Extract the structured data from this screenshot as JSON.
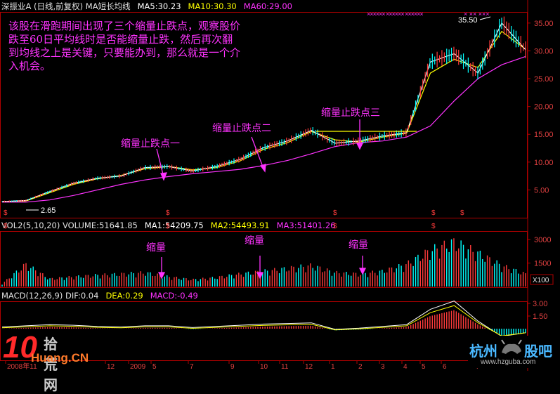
{
  "header_main": {
    "title": "深振业A (日线,前复权) MA短长均线",
    "ma5": "MA5:30.23",
    "ma10": "MA10:30.30",
    "ma60": "MA60:29.00"
  },
  "header_vol": {
    "vol": "VOL2(5,10,20) VOLUME:51641.85",
    "ma1": "MA1:54209.75",
    "ma2": "MA2:54493.91",
    "ma3": "MA3:51401.26"
  },
  "header_macd": {
    "macd": "MACD(12,26,9) DIF:0.04",
    "dea": "DEA:0.29",
    "macdv": "MACD:-0.49"
  },
  "annotation": "该股在滑跑期间出现了三个缩量止跌点，观察股价跌至60日平均线时是否能缩量止跌，然后再次翻到均线之上是关键，只要能办到，那么就是一个介入机会。",
  "labels": {
    "point1": "缩量止跌点一",
    "point2": "缩量止跌点二",
    "point3": "缩量止跌点三",
    "vol1": "缩量",
    "vol2": "缩量",
    "vol3": "缩量"
  },
  "price_marks": {
    "high": "35.50",
    "low": "2.65"
  },
  "x_axis_ticks": [
    "2008年11",
    "12",
    "2009",
    "5",
    "7",
    "9",
    "10",
    "11",
    "12",
    "1",
    "2",
    "3",
    "4",
    "5",
    "6",
    "7"
  ],
  "watermarks": {
    "left_brand": "10",
    "left_text": "拾荒网",
    "left_url": "Huang.CN",
    "right_brand": "杭州",
    "right_brand2": "股吧",
    "right_url": "www.hzguba.com"
  },
  "colors": {
    "up": "#ff3b3b",
    "down": "#00ffff",
    "ma5": "#ffffff",
    "ma10": "#ffff00",
    "ma60": "#ff33ff",
    "axis": "#b00000",
    "annotation": "#ff33ff"
  },
  "chart_data": [
    {
      "type": "line",
      "title": "深振业A (日线,前复权) MA短长均线",
      "y_ticks": [
        5.0,
        10.0,
        15.0,
        20.0,
        25.0,
        30.0,
        35.0
      ],
      "ylim": [
        0,
        37
      ],
      "series": [
        {
          "name": "MA60",
          "values": [
            2.8,
            2.8,
            3.2,
            4.0,
            5.0,
            6.0,
            6.8,
            7.4,
            7.9,
            8.3,
            8.7,
            9.4,
            10.3,
            11.5,
            12.8,
            13.5,
            13.8,
            14.5,
            16.5,
            21.0,
            25.0,
            27.5,
            29.0
          ]
        },
        {
          "name": "MA10",
          "values": [
            2.9,
            3.0,
            4.5,
            6.0,
            7.0,
            7.6,
            8.8,
            9.2,
            8.6,
            9.0,
            10.2,
            12.3,
            13.5,
            15.5,
            14.0,
            13.6,
            14.5,
            15.2,
            26.0,
            28.5,
            27.0,
            33.5,
            30.3
          ]
        },
        {
          "name": "MA5",
          "values": [
            2.9,
            3.1,
            4.7,
            6.2,
            7.1,
            7.5,
            9.0,
            9.2,
            8.4,
            9.2,
            10.5,
            12.6,
            13.8,
            15.7,
            13.4,
            13.8,
            14.7,
            15.3,
            28.0,
            29.5,
            26.0,
            35.0,
            30.2
          ]
        }
      ],
      "annotations": [
        "35.50",
        "2.65"
      ]
    },
    {
      "type": "bar",
      "title": "VOL2(5,10,20) VOLUME:51641.85",
      "y_ticks": [
        1500,
        3000
      ],
      "extra_label": "X100",
      "values": [
        200,
        1600,
        550,
        700,
        820,
        900,
        1000,
        700,
        500,
        650,
        900,
        1100,
        1300,
        1500,
        1000,
        900,
        1100,
        1600,
        2600,
        3200,
        2400,
        1500,
        900
      ]
    },
    {
      "type": "bar",
      "title": "MACD(12,26,9) DIF:0.04",
      "y_ticks": [
        1.5,
        3.0
      ],
      "values": [
        0.0,
        0.1,
        0.2,
        0.15,
        0.05,
        0.0,
        0.1,
        0.1,
        -0.05,
        0.05,
        0.15,
        0.25,
        0.3,
        0.35,
        -0.2,
        -0.1,
        0.05,
        0.2,
        1.5,
        2.2,
        0.5,
        -0.8,
        -0.49
      ]
    }
  ]
}
